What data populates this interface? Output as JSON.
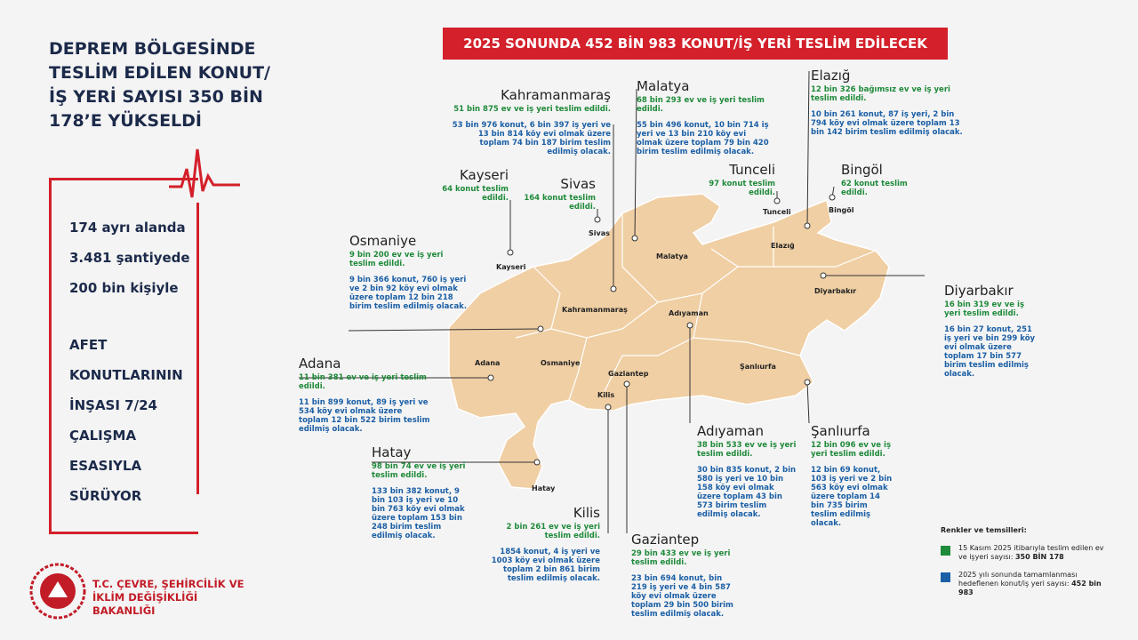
{
  "header": {
    "title": "DEPREM BÖLGESİNDE TESLİM EDİLEN KONUT/ İŞ YERİ SAYISI 350 BİN 178’E YÜKSELDİ",
    "banner": "2025 SONUNDA 452 BİN 983 KONUT/İŞ YERİ TESLİM EDİLECEK"
  },
  "stats": [
    "174 ayrı alanda",
    "3.481 şantiyede",
    "200 bin kişiyle",
    "AFET",
    "KONUTLARININ",
    "İNŞASI 7/24",
    "ÇALIŞMA",
    "ESASIYLA",
    "SÜRÜYOR"
  ],
  "provinces": [
    {
      "name": "Kahramanmaraş",
      "delivered": "51 bin 875 ev ve iş yeri teslim edildi.",
      "planned": "53 bin 976 konut, 6 bin 397 iş yeri ve 13 bin 814 köy evi olmak üzere toplam 74 bin 187 birim teslim edilmiş olacak."
    },
    {
      "name": "Malatya",
      "delivered": "68 bin 293 ev ve iş yeri teslim edildi.",
      "planned": "55 bin 496 konut, 10 bin 714 iş yeri ve 13 bin 210 köy evi olmak üzere toplam 79 bin 420 birim teslim edilmiş olacak."
    },
    {
      "name": "Elazığ",
      "delivered": "12 bin 326 bağımsız ev ve iş yeri teslim edildi.",
      "planned": "10 bin 261 konut, 87 iş yeri, 2 bin 794 köy evi olmak üzere toplam 13 bin 142 birim teslim edilmiş olacak."
    },
    {
      "name": "Kayseri",
      "delivered": "64 konut teslim edildi."
    },
    {
      "name": "Sivas",
      "delivered": "164 konut teslim edildi."
    },
    {
      "name": "Tunceli",
      "delivered": "97 konut teslim edildi."
    },
    {
      "name": "Bingöl",
      "delivered": "62 konut teslim edildi."
    },
    {
      "name": "Osmaniye",
      "delivered": "9 bin 200 ev ve iş yeri teslim edildi.",
      "planned": "9 bin 366 konut, 760 iş yeri ve 2 bin 92 köy evi olmak üzere toplam 12 bin 218 birim teslim edilmiş olacak."
    },
    {
      "name": "Diyarbakır",
      "delivered": "16 bin 319 ev ve iş yeri teslim edildi.",
      "planned": "16 bin 27 konut, 251 iş yeri ve bin 299 köy evi olmak üzere toplam 17 bin 577 birim teslim edilmiş olacak."
    },
    {
      "name": "Adana",
      "delivered": "11 bin 381 ev ve iş yeri teslim edildi.",
      "planned": "11 bin 899 konut, 89 iş yeri ve 534 köy evi olmak üzere toplam 12 bin 522 birim teslim edilmiş olacak."
    },
    {
      "name": "Hatay",
      "delivered": "98 bin 74 ev ve iş yeri teslim edildi.",
      "planned": "133 bin 382 konut, 9 bin 103 iş yeri ve 10 bin 763 köy evi olmak üzere toplam 153 bin 248 birim teslim edilmiş olacak."
    },
    {
      "name": "Adıyaman",
      "delivered": "38 bin 533 ev ve iş yeri teslim edildi.",
      "planned": "30 bin 835 konut, 2 bin 580 iş yeri ve 10 bin 158 köy evi olmak üzere toplam 43 bin 573 birim teslim edilmiş olacak."
    },
    {
      "name": "Şanlıurfa",
      "delivered": "12 bin 096 ev ve iş yeri teslim edildi.",
      "planned": "12 bin 69 konut, 103 iş yeri ve 2 bin 563 köy evi olmak üzere toplam 14 bin 735 birim teslim edilmiş olacak."
    },
    {
      "name": "Kilis",
      "delivered": "2 bin 261 ev ve iş yeri teslim edildi.",
      "planned": "1854 konut, 4 iş yeri ve 1003 köy evi olmak üzere toplam 2 bin 861 birim teslim edilmiş olacak."
    },
    {
      "name": "Gaziantep",
      "delivered": "29 bin 433 ev ve iş yeri teslim edildi.",
      "planned": "23 bin 694 konut, bin 219 iş yeri ve 4 bin 587 köy evi olmak üzere toplam 29 bin 500 birim teslim edilmiş olacak."
    }
  ],
  "legend": {
    "title": "Renkler ve temsilleri:",
    "items": [
      {
        "text": "15 Kasım 2025 itibarıyla teslim edilen ev ve işyeri sayısı:",
        "figure": "350 BİN 178",
        "color": "#1f8a3a"
      },
      {
        "text": "2025 yılı sonunda tamamlanması hedeflenen konut/iş yeri sayısı:",
        "figure": "452 bin 983",
        "color": "#1b5fa5"
      }
    ]
  },
  "ministry": "T.C. ÇEVRE, ŞEHİRCİLİK VE İKLİM DEĞİŞİKLİĞİ BAKANLIĞI"
}
